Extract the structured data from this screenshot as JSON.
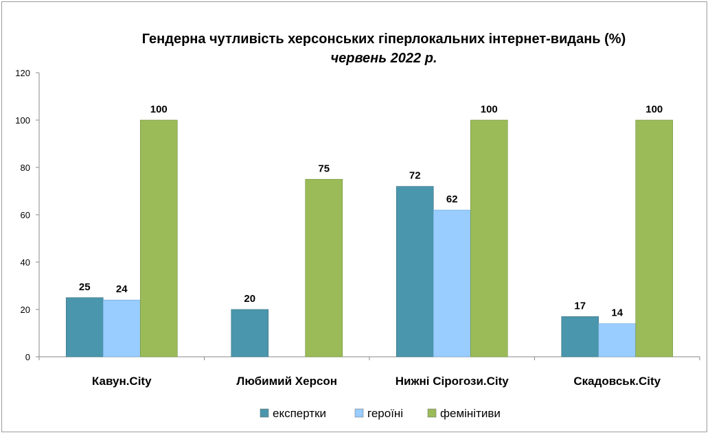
{
  "chart_data": {
    "type": "bar",
    "title": "Гендерна чутливість херсонських гіперлокальних інтернет-видань (%)",
    "subtitle": "червень 2022 р.",
    "categories": [
      "Кавун.City",
      "Любимий Херсон",
      "Нижні Сірогози.City",
      "Скадовськ.City"
    ],
    "series": [
      {
        "name": "експертки",
        "color": "#4a96ac",
        "values": [
          25,
          20,
          72,
          17
        ]
      },
      {
        "name": "героїні",
        "color": "#99ccff",
        "values": [
          24,
          null,
          62,
          14
        ]
      },
      {
        "name": "фемінітиви",
        "color": "#9bbb59",
        "values": [
          100,
          75,
          100,
          100
        ]
      }
    ],
    "ylim": [
      0,
      120
    ],
    "yticks": [
      0,
      20,
      40,
      60,
      80,
      100,
      120
    ],
    "xlabel": "",
    "ylabel": "",
    "grid": false,
    "legend_position": "bottom"
  }
}
